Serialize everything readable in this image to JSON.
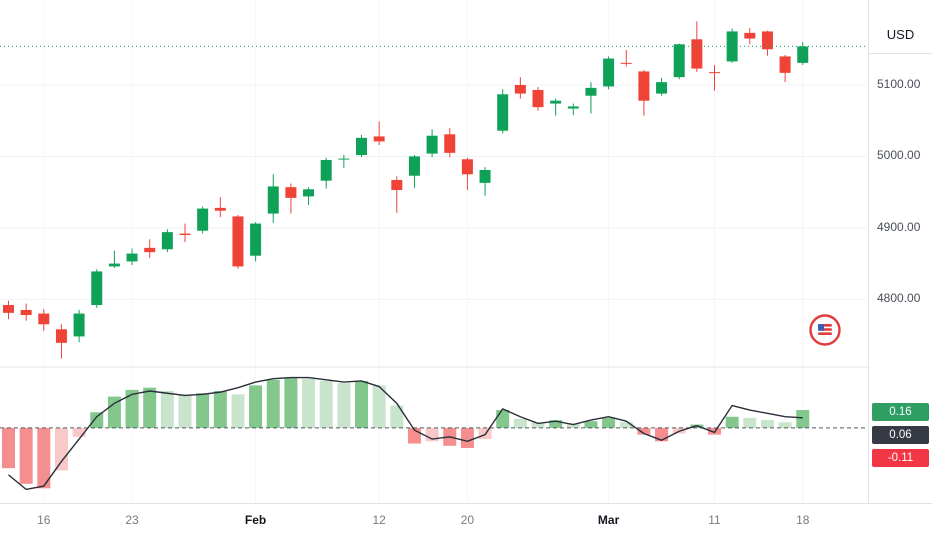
{
  "chart_data": {
    "type": "candlestick",
    "price_line": 5154,
    "colors": {
      "up": "#0fa158",
      "down": "#ef4337",
      "price_line": "#0fa158",
      "grid": "#eef1f7",
      "grid_v": "#f5f6fa",
      "hist_pos_grow": "#83c78c",
      "hist_pos_fall": "#c8e5cc",
      "hist_neg_fall": "#f58e8e",
      "hist_neg_grow": "#f9c9c9",
      "indicator_line": "#2a2e39"
    },
    "y_axis": {
      "currency_label": "USD",
      "range": [
        4715,
        5205
      ],
      "ticks": [
        {
          "value": 5100,
          "label": "5100.00"
        },
        {
          "value": 5000,
          "label": "5000.00"
        },
        {
          "value": 4900,
          "label": "4900.00"
        },
        {
          "value": 4800,
          "label": "4800.00"
        }
      ]
    },
    "x_axis": {
      "labels": [
        {
          "index": 2,
          "label": "16",
          "bold": false
        },
        {
          "index": 7,
          "label": "23",
          "bold": false
        },
        {
          "index": 14,
          "label": "Feb",
          "bold": true
        },
        {
          "index": 21,
          "label": "12",
          "bold": false
        },
        {
          "index": 26,
          "label": "20",
          "bold": false
        },
        {
          "index": 34,
          "label": "Mar",
          "bold": true
        },
        {
          "index": 40,
          "label": "11",
          "bold": false
        },
        {
          "index": 45,
          "label": "18",
          "bold": false
        }
      ]
    },
    "candles": [
      [
        "Jan 11",
        4792,
        4798,
        4772,
        4781
      ],
      [
        "Jan 12",
        4785,
        4794,
        4770,
        4778
      ],
      [
        "Jan 16",
        4780,
        4786,
        4756,
        4765
      ],
      [
        "Jan 17",
        4758,
        4765,
        4717,
        4739
      ],
      [
        "Jan 18",
        4748,
        4785,
        4740,
        4780
      ],
      [
        "Jan 19",
        4792,
        4842,
        4788,
        4839
      ],
      [
        "Jan 22",
        4846,
        4868,
        4844,
        4850
      ],
      [
        "Jan 23",
        4853,
        4871,
        4848,
        4864
      ],
      [
        "Jan 24",
        4872,
        4884,
        4858,
        4866
      ],
      [
        "Jan 25",
        4870,
        4898,
        4866,
        4894
      ],
      [
        "Jan 26",
        4892,
        4906,
        4880,
        4890
      ],
      [
        "Jan 29",
        4896,
        4930,
        4892,
        4927
      ],
      [
        "Jan 30",
        4928,
        4943,
        4915,
        4924
      ],
      [
        "Jan 31",
        4916,
        4918,
        4843,
        4846
      ],
      [
        "Feb 1",
        4861,
        4908,
        4853,
        4906
      ],
      [
        "Feb 2",
        4920,
        4975,
        4907,
        4958
      ],
      [
        "Feb 5",
        4957,
        4962,
        4920,
        4942
      ],
      [
        "Feb 6",
        4944,
        4957,
        4932,
        4954
      ],
      [
        "Feb 7",
        4966,
        4998,
        4955,
        4995
      ],
      [
        "Feb 8",
        4996,
        5002,
        4984,
        4997
      ],
      [
        "Feb 9",
        5002,
        5030,
        4999,
        5026
      ],
      [
        "Feb 12",
        5028,
        5049,
        5016,
        5021
      ],
      [
        "Feb 13",
        4967,
        4972,
        4921,
        4953
      ],
      [
        "Feb 14",
        4973,
        5002,
        4956,
        5000
      ],
      [
        "Feb 15",
        5004,
        5038,
        4999,
        5029
      ],
      [
        "Feb 16",
        5031,
        5040,
        4999,
        5005
      ],
      [
        "Feb 20",
        4996,
        4998,
        4953,
        4975
      ],
      [
        "Feb 21",
        4963,
        4985,
        4945,
        4981
      ],
      [
        "Feb 22",
        5036,
        5094,
        5032,
        5087
      ],
      [
        "Feb 23",
        5100,
        5111,
        5081,
        5088
      ],
      [
        "Feb 26",
        5093,
        5097,
        5064,
        5069
      ],
      [
        "Feb 27",
        5074,
        5081,
        5057,
        5078
      ],
      [
        "Feb 28",
        5067,
        5074,
        5058,
        5070
      ],
      [
        "Feb 29",
        5085,
        5104,
        5060,
        5096
      ],
      [
        "Mar 1",
        5098,
        5140,
        5094,
        5137
      ],
      [
        "Mar 4",
        5131,
        5149,
        5126,
        5130
      ],
      [
        "Mar 5",
        5119,
        5121,
        5057,
        5078
      ],
      [
        "Mar 6",
        5088,
        5110,
        5085,
        5104
      ],
      [
        "Mar 7",
        5111,
        5158,
        5108,
        5157
      ],
      [
        "Mar 8",
        5164,
        5189,
        5118,
        5123
      ],
      [
        "Mar 11",
        5118,
        5128,
        5092,
        5117
      ],
      [
        "Mar 12",
        5133,
        5179,
        5131,
        5175
      ],
      [
        "Mar 13",
        5173,
        5180,
        5157,
        5165
      ],
      [
        "Mar 14",
        5175,
        5176,
        5141,
        5150
      ],
      [
        "Mar 15",
        5140,
        5142,
        5104,
        5117
      ],
      [
        "Mar 18",
        5131,
        5160,
        5128,
        5154
      ]
    ],
    "indicator": {
      "type": "macd_histogram",
      "range": [
        -0.6,
        0.5
      ],
      "values": [
        -0.36,
        -0.5,
        -0.54,
        -0.38,
        -0.08,
        0.14,
        0.28,
        0.34,
        0.36,
        0.33,
        0.3,
        0.31,
        0.33,
        0.3,
        0.38,
        0.43,
        0.45,
        0.44,
        0.42,
        0.4,
        0.42,
        0.38,
        0.2,
        -0.14,
        -0.12,
        -0.16,
        -0.18,
        -0.1,
        0.16,
        0.08,
        0.05,
        0.07,
        0.04,
        0.06,
        0.09,
        0.05,
        -0.06,
        -0.12,
        -0.05,
        0.03,
        -0.06,
        0.1,
        0.09,
        0.07,
        0.05,
        0.16
      ],
      "line": [
        -0.42,
        -0.55,
        -0.52,
        -0.3,
        -0.1,
        0.1,
        0.22,
        0.3,
        0.33,
        0.31,
        0.29,
        0.3,
        0.32,
        0.36,
        0.41,
        0.44,
        0.45,
        0.45,
        0.43,
        0.41,
        0.42,
        0.37,
        0.22,
        -0.02,
        -0.1,
        -0.08,
        -0.12,
        -0.06,
        0.17,
        0.1,
        0.04,
        0.06,
        0.03,
        0.07,
        0.1,
        0.06,
        -0.05,
        -0.11,
        -0.03,
        0.02,
        -0.04,
        0.2,
        0.16,
        0.13,
        0.1,
        0.09
      ],
      "badges": [
        {
          "label": "0.16",
          "color": "#2e9e63"
        },
        {
          "label": "0.06",
          "color": "#363a45"
        },
        {
          "label": "-0.11",
          "color": "#f23645"
        }
      ]
    }
  }
}
